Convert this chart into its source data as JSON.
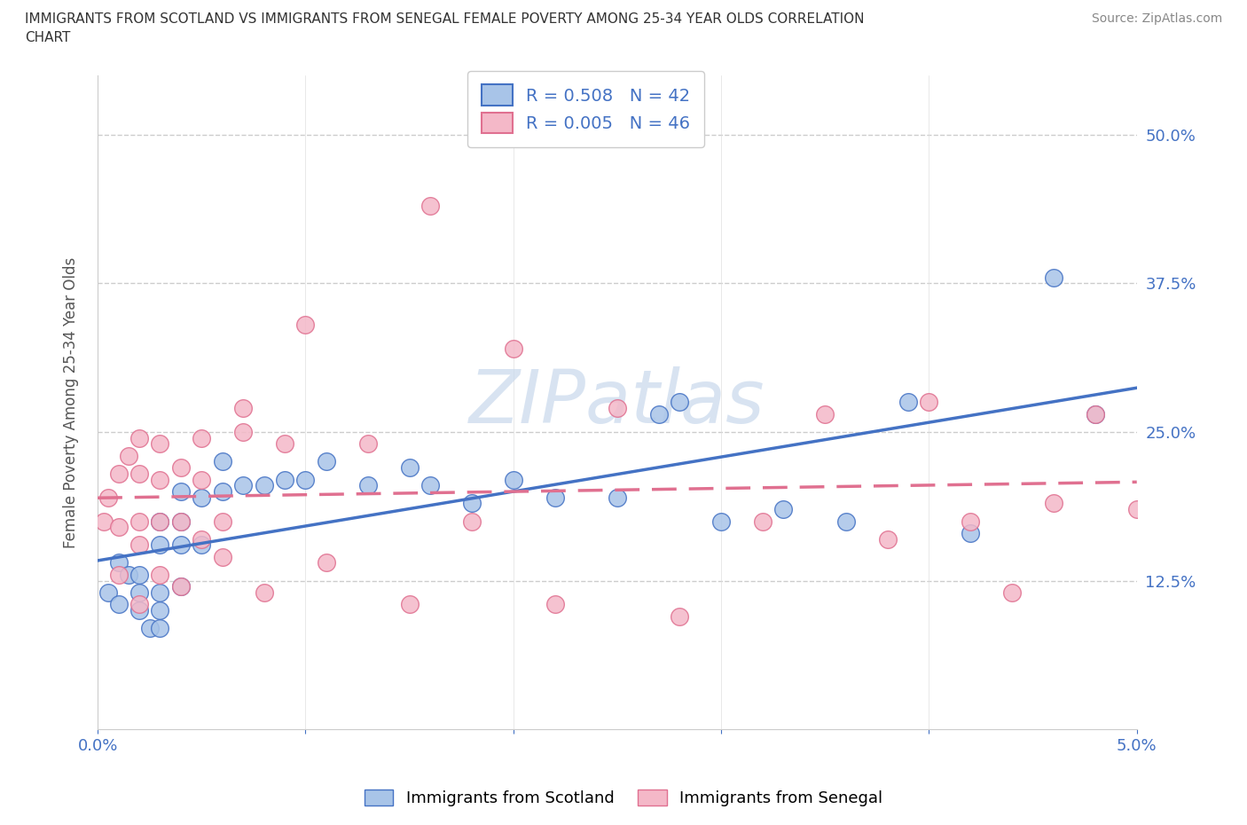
{
  "title_line1": "IMMIGRANTS FROM SCOTLAND VS IMMIGRANTS FROM SENEGAL FEMALE POVERTY AMONG 25-34 YEAR OLDS CORRELATION",
  "title_line2": "CHART",
  "source": "Source: ZipAtlas.com",
  "ylabel_label": "Female Poverty Among 25-34 Year Olds",
  "legend_scotland": "R = 0.508   N = 42",
  "legend_senegal": "R = 0.005   N = 46",
  "scotland_color": "#a8c4e8",
  "senegal_color": "#f4b8c8",
  "scotland_line_color": "#4472c4",
  "senegal_line_color": "#e07090",
  "watermark_color": "#c8d8ec",
  "xlim": [
    0.0,
    0.05
  ],
  "ylim": [
    0.0,
    0.55
  ],
  "y_tick_vals": [
    0.125,
    0.25,
    0.375,
    0.5
  ],
  "y_tick_labels": [
    "12.5%",
    "25.0%",
    "37.5%",
    "50.0%"
  ],
  "scotland_x": [
    0.0005,
    0.001,
    0.001,
    0.0015,
    0.002,
    0.002,
    0.002,
    0.0025,
    0.003,
    0.003,
    0.003,
    0.003,
    0.003,
    0.004,
    0.004,
    0.004,
    0.004,
    0.005,
    0.005,
    0.006,
    0.006,
    0.007,
    0.008,
    0.009,
    0.01,
    0.011,
    0.013,
    0.015,
    0.016,
    0.018,
    0.02,
    0.022,
    0.025,
    0.027,
    0.028,
    0.03,
    0.033,
    0.036,
    0.039,
    0.042,
    0.046,
    0.048
  ],
  "scotland_y": [
    0.115,
    0.105,
    0.14,
    0.13,
    0.1,
    0.115,
    0.13,
    0.085,
    0.085,
    0.1,
    0.115,
    0.155,
    0.175,
    0.12,
    0.155,
    0.175,
    0.2,
    0.155,
    0.195,
    0.2,
    0.225,
    0.205,
    0.205,
    0.21,
    0.21,
    0.225,
    0.205,
    0.22,
    0.205,
    0.19,
    0.21,
    0.195,
    0.195,
    0.265,
    0.275,
    0.175,
    0.185,
    0.175,
    0.275,
    0.165,
    0.38,
    0.265
  ],
  "senegal_x": [
    0.0003,
    0.0005,
    0.001,
    0.001,
    0.001,
    0.0015,
    0.002,
    0.002,
    0.002,
    0.002,
    0.002,
    0.003,
    0.003,
    0.003,
    0.003,
    0.004,
    0.004,
    0.004,
    0.005,
    0.005,
    0.005,
    0.006,
    0.006,
    0.007,
    0.007,
    0.008,
    0.009,
    0.01,
    0.011,
    0.013,
    0.015,
    0.016,
    0.018,
    0.02,
    0.022,
    0.025,
    0.028,
    0.032,
    0.035,
    0.038,
    0.04,
    0.042,
    0.044,
    0.046,
    0.048,
    0.05
  ],
  "senegal_y": [
    0.175,
    0.195,
    0.13,
    0.17,
    0.215,
    0.23,
    0.105,
    0.155,
    0.175,
    0.215,
    0.245,
    0.13,
    0.175,
    0.21,
    0.24,
    0.12,
    0.175,
    0.22,
    0.16,
    0.21,
    0.245,
    0.145,
    0.175,
    0.25,
    0.27,
    0.115,
    0.24,
    0.34,
    0.14,
    0.24,
    0.105,
    0.44,
    0.175,
    0.32,
    0.105,
    0.27,
    0.095,
    0.175,
    0.265,
    0.16,
    0.275,
    0.175,
    0.115,
    0.19,
    0.265,
    0.185
  ]
}
